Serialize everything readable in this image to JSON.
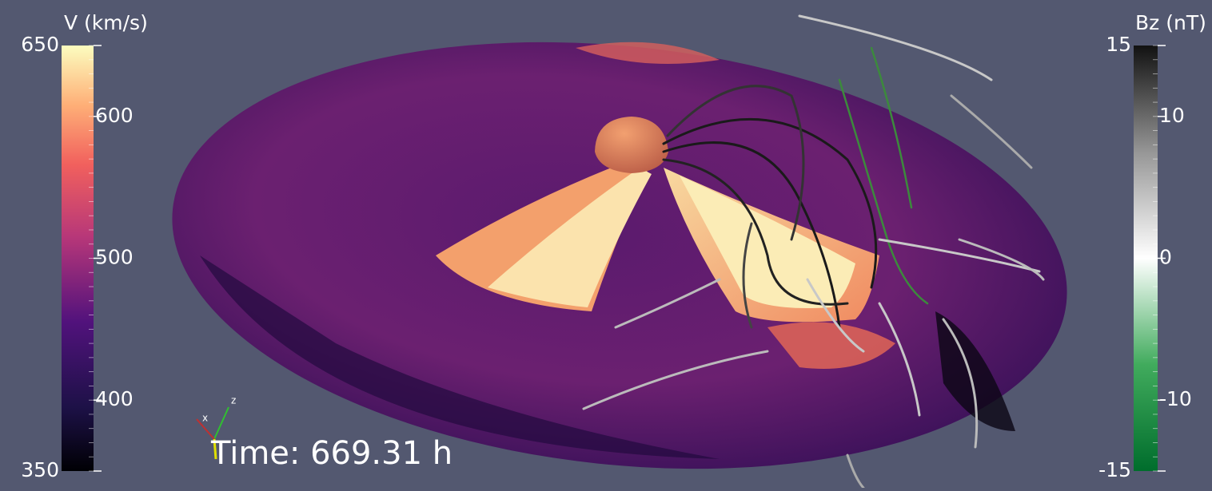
{
  "left_colorbar": {
    "title": "V (km/s)",
    "ticks": [
      650,
      600,
      500,
      400,
      350
    ]
  },
  "right_colorbar": {
    "title": "Bz (nT)",
    "ticks": [
      15,
      10,
      0,
      -10,
      -15
    ]
  },
  "axes_triad": {
    "x": "x",
    "z": "z"
  },
  "time_label": "Time: 669.31 h"
}
